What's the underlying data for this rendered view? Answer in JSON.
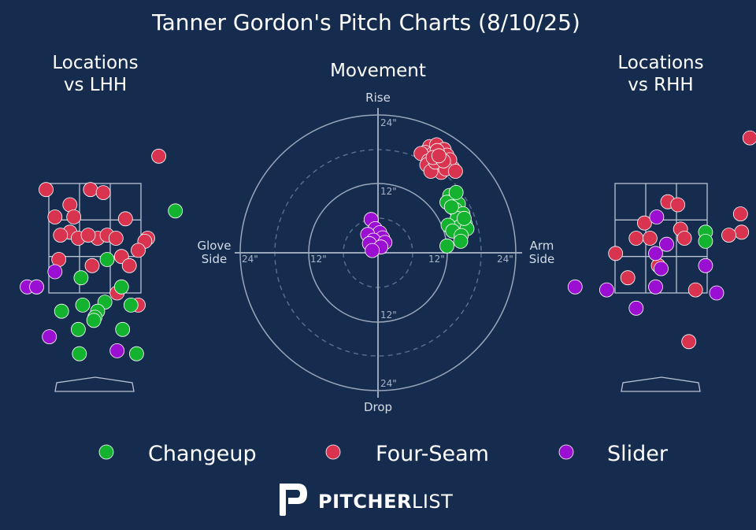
{
  "title": "Tanner Gordon's Pitch Charts (8/10/25)",
  "panels": {
    "lhh_title": [
      "Locations",
      "vs LHH"
    ],
    "movement_title": "Movement",
    "rhh_title": [
      "Locations",
      "vs RHH"
    ]
  },
  "movement_axes": {
    "rise": "Rise",
    "drop": "Drop",
    "glove": [
      "Glove",
      "Side"
    ],
    "arm": [
      "Arm",
      "Side"
    ],
    "ring_labels": {
      "top_outer": "24\"",
      "top_inner": "12\"",
      "bottom_inner": "12\"",
      "bottom_outer": "24\"",
      "left_outer": "24\"",
      "left_inner": "12\"",
      "right_inner": "12\"",
      "right_outer": "24\""
    }
  },
  "colors": {
    "background": "#162c4f",
    "Changeup": "#14b32f",
    "Four-Seam": "#d9344f",
    "Slider": "#9a0fd1"
  },
  "legend": [
    {
      "pitch": "Changeup"
    },
    {
      "pitch": "Four-Seam"
    },
    {
      "pitch": "Slider"
    }
  ],
  "brand": {
    "bold": "PITCHER",
    "light": "LIST",
    "logo_icon": "pitcherlist-p-logo-icon"
  },
  "chart_data": [
    {
      "type": "scatter",
      "title": "Locations vs LHH",
      "units": "feet (catcher view)",
      "xlim": [
        -1.7,
        1.7
      ],
      "ylim": [
        0.4,
        4.6
      ],
      "strike_zone": {
        "x": [
          -0.83,
          0.83
        ],
        "z": [
          1.6,
          3.4
        ]
      },
      "series": [
        {
          "name": "Four-Seam",
          "points": [
            [
              1.15,
              3.85
            ],
            [
              -0.88,
              3.3
            ],
            [
              -0.08,
              3.3
            ],
            [
              0.15,
              3.25
            ],
            [
              -0.45,
              3.05
            ],
            [
              -0.72,
              2.85
            ],
            [
              -0.38,
              2.85
            ],
            [
              0.55,
              2.82
            ],
            [
              -0.45,
              2.6
            ],
            [
              -0.62,
              2.55
            ],
            [
              -0.3,
              2.5
            ],
            [
              0.05,
              2.5
            ],
            [
              -0.12,
              2.55
            ],
            [
              0.22,
              2.55
            ],
            [
              0.38,
              2.5
            ],
            [
              0.95,
              2.5
            ],
            [
              0.9,
              2.45
            ],
            [
              0.78,
              2.3
            ],
            [
              0.48,
              2.2
            ],
            [
              -0.65,
              2.15
            ],
            [
              0.62,
              2.05
            ],
            [
              -0.05,
              2.05
            ],
            [
              -1.05,
              1.7
            ],
            [
              0.4,
              1.6
            ],
            [
              0.78,
              1.4
            ]
          ]
        },
        {
          "name": "Changeup",
          "points": [
            [
              1.45,
              2.95
            ],
            [
              0.22,
              2.15
            ],
            [
              -0.25,
              1.85
            ],
            [
              0.48,
              1.7
            ],
            [
              0.18,
              1.45
            ],
            [
              0.65,
              1.4
            ],
            [
              -0.22,
              1.4
            ],
            [
              -0.6,
              1.3
            ],
            [
              0.05,
              1.3
            ],
            [
              0.0,
              1.2
            ],
            [
              -0.02,
              1.15
            ],
            [
              -0.3,
              1.0
            ],
            [
              0.5,
              1.0
            ],
            [
              -0.28,
              0.6
            ],
            [
              0.75,
              0.6
            ]
          ]
        },
        {
          "name": "Slider",
          "points": [
            [
              -0.72,
              1.95
            ],
            [
              -1.22,
              1.7
            ],
            [
              -1.05,
              1.7
            ],
            [
              -0.82,
              0.88
            ],
            [
              0.4,
              0.65
            ]
          ]
        }
      ]
    },
    {
      "type": "scatter",
      "title": "Movement",
      "units": "inches",
      "xlabel": "Glove Side / Arm Side",
      "ylabel": "Rise / Drop",
      "rings": [
        12,
        24
      ],
      "xlim": [
        -24,
        24
      ],
      "ylim": [
        -24,
        24
      ],
      "series": [
        {
          "name": "Four-Seam",
          "points": [
            [
              9.0,
              18.5
            ],
            [
              10.2,
              18.8
            ],
            [
              11.5,
              18.0
            ],
            [
              8.2,
              17.5
            ],
            [
              9.5,
              17.2
            ],
            [
              12.0,
              17.0
            ],
            [
              7.5,
              17.3
            ],
            [
              10.8,
              16.5
            ],
            [
              8.8,
              16.0
            ],
            [
              11.2,
              15.5
            ],
            [
              9.8,
              15.0
            ],
            [
              12.2,
              15.2
            ],
            [
              10.5,
              14.5
            ],
            [
              8.5,
              15.3
            ],
            [
              13.0,
              14.8
            ],
            [
              11.0,
              14.0
            ],
            [
              9.2,
              14.2
            ],
            [
              10.0,
              15.8
            ],
            [
              12.5,
              16.2
            ],
            [
              11.8,
              14.6
            ],
            [
              10.3,
              17.8
            ],
            [
              9.6,
              16.6
            ],
            [
              13.5,
              14.2
            ],
            [
              11.4,
              16.0
            ],
            [
              10.6,
              16.9
            ]
          ]
        },
        {
          "name": "Changeup",
          "points": [
            [
              12.5,
              10.0
            ],
            [
              13.2,
              9.2
            ],
            [
              14.0,
              8.5
            ],
            [
              13.5,
              7.5
            ],
            [
              14.8,
              6.8
            ],
            [
              13.8,
              6.0
            ],
            [
              15.2,
              5.0
            ],
            [
              14.2,
              4.5
            ],
            [
              12.2,
              4.8
            ],
            [
              15.5,
              4.2
            ],
            [
              13.0,
              3.8
            ],
            [
              14.5,
              3.0
            ],
            [
              12.0,
              8.8
            ],
            [
              13.6,
              10.5
            ],
            [
              14.4,
              2.0
            ],
            [
              12.8,
              8.0
            ],
            [
              15.0,
              6.0
            ],
            [
              12.0,
              1.2
            ]
          ]
        },
        {
          "name": "Slider",
          "points": [
            [
              -1.2,
              5.8
            ],
            [
              -0.5,
              4.2
            ],
            [
              0.3,
              3.5
            ],
            [
              -1.8,
              3.2
            ],
            [
              0.8,
              2.6
            ],
            [
              -0.8,
              2.2
            ],
            [
              1.2,
              1.8
            ],
            [
              -1.5,
              1.6
            ],
            [
              0.5,
              1.0
            ],
            [
              -1.0,
              0.4
            ]
          ]
        }
      ]
    },
    {
      "type": "scatter",
      "title": "Locations vs RHH",
      "units": "feet (catcher view)",
      "xlim": [
        -1.7,
        1.7
      ],
      "ylim": [
        0.4,
        4.6
      ],
      "strike_zone": {
        "x": [
          -0.83,
          0.83
        ],
        "z": [
          1.6,
          3.4
        ]
      },
      "series": [
        {
          "name": "Four-Seam",
          "points": [
            [
              1.6,
              4.15
            ],
            [
              0.12,
              3.1
            ],
            [
              0.3,
              3.05
            ],
            [
              1.43,
              2.9
            ],
            [
              -0.3,
              2.75
            ],
            [
              0.35,
              2.65
            ],
            [
              1.45,
              2.6
            ],
            [
              1.22,
              2.55
            ],
            [
              -0.45,
              2.5
            ],
            [
              -0.2,
              2.5
            ],
            [
              0.42,
              2.5
            ],
            [
              -0.82,
              2.25
            ],
            [
              -0.05,
              2.05
            ],
            [
              -0.6,
              1.85
            ],
            [
              0.62,
              1.65
            ],
            [
              0.5,
              0.8
            ]
          ]
        },
        {
          "name": "Changeup",
          "points": [
            [
              0.8,
              2.6
            ],
            [
              0.8,
              2.45
            ]
          ]
        },
        {
          "name": "Slider",
          "points": [
            [
              -0.08,
              2.85
            ],
            [
              0.1,
              2.4
            ],
            [
              -0.1,
              2.25
            ],
            [
              0.8,
              2.05
            ],
            [
              0.0,
              2.0
            ],
            [
              -1.55,
              1.7
            ],
            [
              -0.98,
              1.65
            ],
            [
              -0.1,
              1.7
            ],
            [
              1.0,
              1.6
            ],
            [
              -0.45,
              1.35
            ]
          ]
        }
      ]
    }
  ]
}
